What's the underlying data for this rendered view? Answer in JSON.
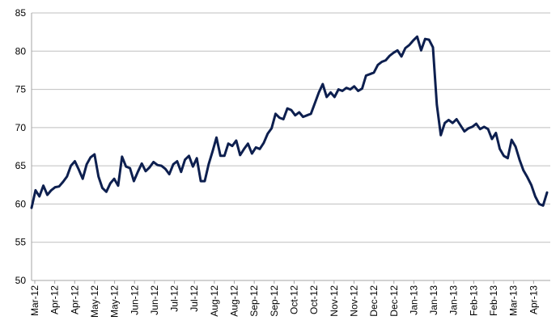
{
  "chart_data": {
    "type": "line",
    "title": "",
    "xlabel": "",
    "ylabel": "",
    "ylim": [
      50,
      85
    ],
    "yticks": [
      50,
      55,
      60,
      65,
      70,
      75,
      80,
      85
    ],
    "xtick_labels": [
      "Mar-12",
      "Apr-12",
      "Apr-12",
      "May-12",
      "May-12",
      "Jun-12",
      "Jun-12",
      "Jul-12",
      "Jul-12",
      "Aug-12",
      "Aug-12",
      "Sep-12",
      "Sep-12",
      "Oct-12",
      "Oct-12",
      "Nov-12",
      "Nov-12",
      "Dec-12",
      "Dec-12",
      "Jan-13",
      "Jan-13",
      "Jan-13",
      "Feb-13",
      "Feb-13",
      "Mar-13",
      "Apr-13"
    ],
    "grid": "horizontal",
    "legend": "none",
    "line_color": "#0d1f4f",
    "series": [
      {
        "name": "",
        "values": [
          59.5,
          61.8,
          61.0,
          62.4,
          61.2,
          61.8,
          62.2,
          62.3,
          62.9,
          63.6,
          65.0,
          65.6,
          64.5,
          63.3,
          65.2,
          66.1,
          66.5,
          63.6,
          62.1,
          61.6,
          62.7,
          63.3,
          62.4,
          66.2,
          64.9,
          64.7,
          63.0,
          64.2,
          65.3,
          64.3,
          64.8,
          65.5,
          65.1,
          65.0,
          64.6,
          63.9,
          65.2,
          65.6,
          64.2,
          65.8,
          66.3,
          64.9,
          66.0,
          63.0,
          63.0,
          65.2,
          66.9,
          68.7,
          66.3,
          66.3,
          67.9,
          67.6,
          68.3,
          66.4,
          67.2,
          67.9,
          66.6,
          67.4,
          67.2,
          68.0,
          69.2,
          69.9,
          71.8,
          71.3,
          71.1,
          72.5,
          72.3,
          71.6,
          72.0,
          71.4,
          71.6,
          71.8,
          73.2,
          74.6,
          75.7,
          74.0,
          74.6,
          74.0,
          75.0,
          74.8,
          75.2,
          75.0,
          75.4,
          74.8,
          75.1,
          76.8,
          77.0,
          77.2,
          78.2,
          78.6,
          78.8,
          79.4,
          79.8,
          80.1,
          79.3,
          80.4,
          80.8,
          81.4,
          81.9,
          80.1,
          81.6,
          81.5,
          80.5,
          73.0,
          69.0,
          70.6,
          71.0,
          70.6,
          71.1,
          70.3,
          69.5,
          69.9,
          70.1,
          70.5,
          69.8,
          70.1,
          69.8,
          68.5,
          69.3,
          67.2,
          66.3,
          66.0,
          68.4,
          67.5,
          65.8,
          64.4,
          63.5,
          62.5,
          61.0,
          60.0,
          59.8,
          61.5
        ]
      }
    ]
  }
}
